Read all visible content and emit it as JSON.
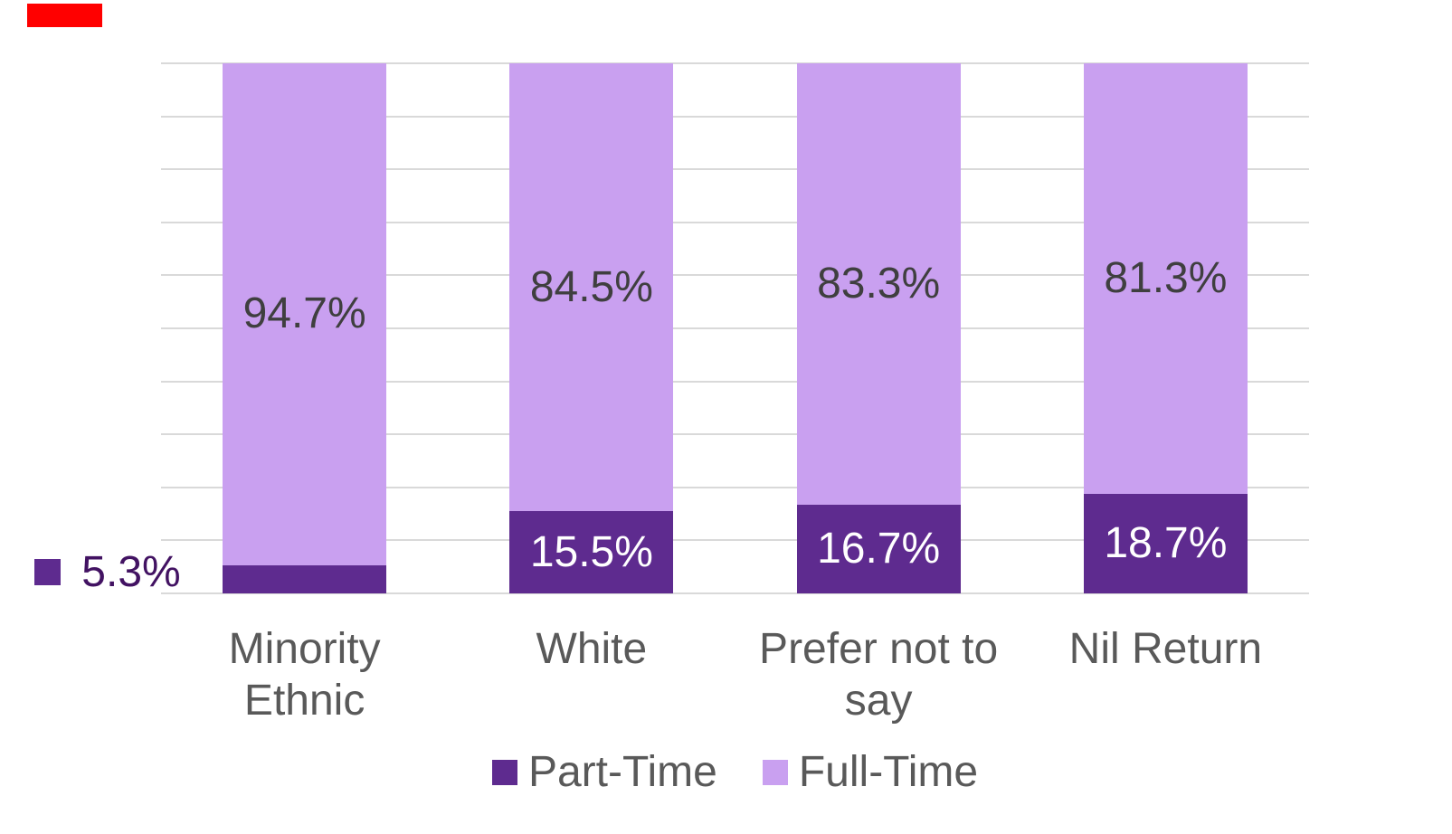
{
  "page": {
    "background": "#FFFFFF"
  },
  "red_marker": {
    "color": "#FF0000"
  },
  "chart_data": {
    "type": "bar",
    "subtype": "100-percent-stacked-column",
    "title": "",
    "categories": [
      "Minority Ethnic",
      "White",
      "Prefer not to say",
      "Nil Return"
    ],
    "series": [
      {
        "name": "Part-Time",
        "color": "#5E2B8F",
        "values": [
          5.3,
          15.5,
          16.7,
          18.7
        ],
        "labels": [
          "5.3%",
          "15.5%",
          "16.7%",
          "18.7%"
        ],
        "label_color_inside": "#FFFFFF",
        "first_label_outside": true,
        "outside_label_color": "#421262"
      },
      {
        "name": "Full-Time",
        "color": "#C9A0F0",
        "values": [
          94.7,
          84.5,
          83.3,
          81.3
        ],
        "labels": [
          "94.7%",
          "84.5%",
          "83.3%",
          "81.3%"
        ],
        "label_color_inside": "#3F3F3F"
      }
    ],
    "ylim": [
      0,
      100
    ],
    "gridlines": {
      "count": 11,
      "interval": 10,
      "color": "#D9D9D9"
    },
    "axis_text_color": "#595959",
    "legend": {
      "position": "bottom",
      "text_color": "#595959"
    }
  }
}
